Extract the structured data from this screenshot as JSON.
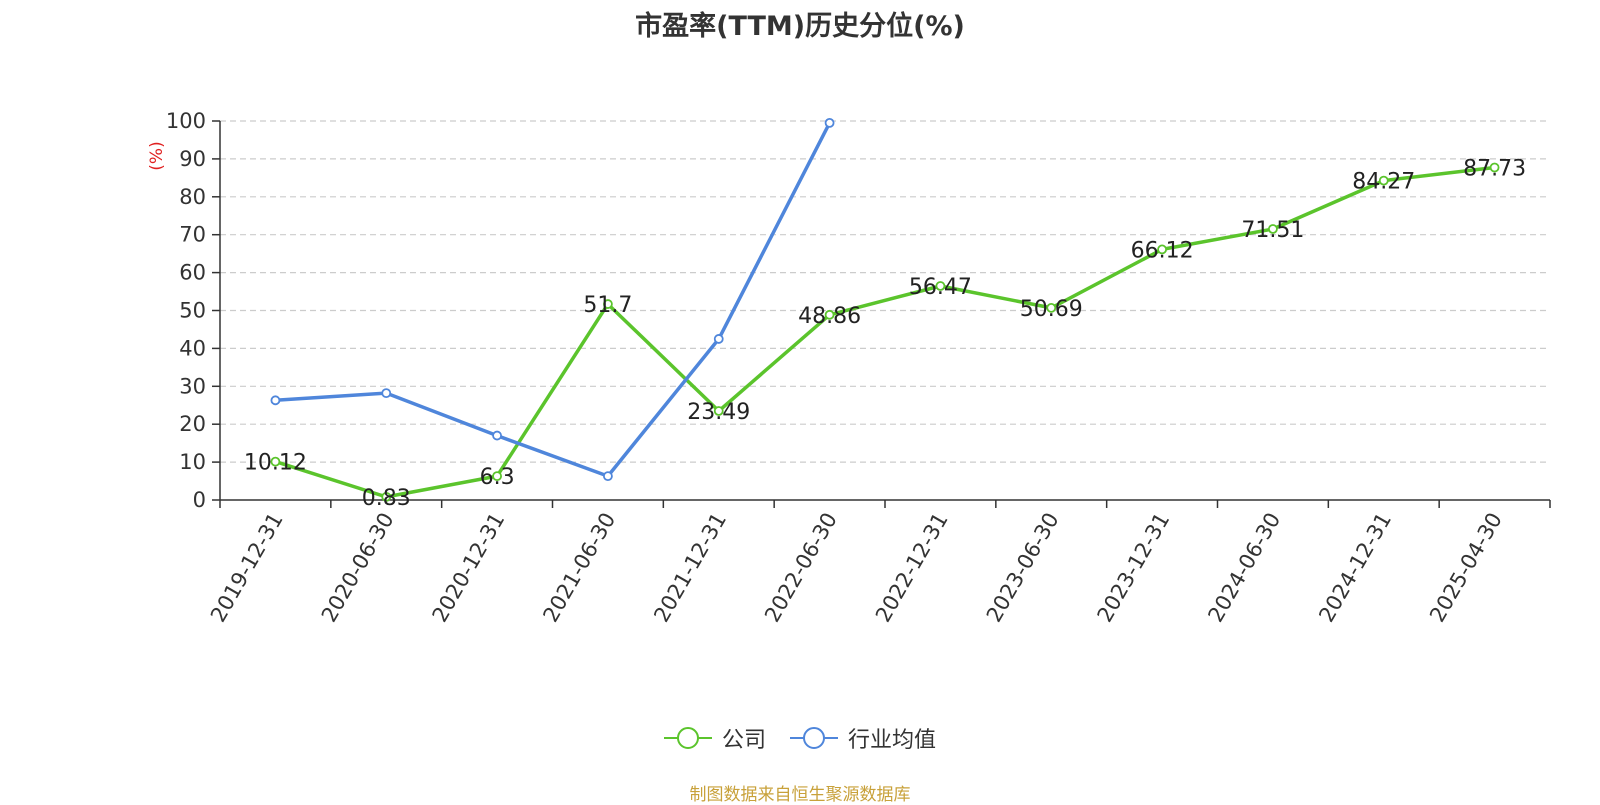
{
  "title": "市盈率(TTM)历史分位(%)",
  "source": "制图数据来自恒生聚源数据库",
  "legend": [
    {
      "name": "公司",
      "color": "#5bc42c"
    },
    {
      "name": "行业均值",
      "color": "#4f86db"
    }
  ],
  "chart_data": {
    "type": "line",
    "title": "市盈率(TTM)历史分位(%)",
    "ylabel": "(%)",
    "xlabel": "",
    "ylim": [
      0,
      100
    ],
    "y_ticks": [
      0,
      10,
      20,
      30,
      40,
      50,
      60,
      70,
      80,
      90,
      100
    ],
    "grid": true,
    "legend_position": "bottom",
    "categories": [
      "2019-12-31",
      "2020-06-30",
      "2020-12-31",
      "2021-06-30",
      "2021-12-31",
      "2022-06-30",
      "2022-12-31",
      "2023-06-30",
      "2023-12-31",
      "2024-06-30",
      "2024-12-31",
      "2025-04-30"
    ],
    "series": [
      {
        "name": "公司",
        "color": "#5bc42c",
        "show_labels": true,
        "values": [
          10.12,
          0.83,
          6.3,
          51.7,
          23.49,
          48.86,
          56.47,
          50.69,
          66.12,
          71.51,
          84.27,
          87.73
        ]
      },
      {
        "name": "行业均值",
        "color": "#4f86db",
        "show_labels": false,
        "values": [
          26.3,
          28.2,
          17.0,
          6.3,
          42.5,
          99.5,
          null,
          null,
          null,
          null,
          null,
          null
        ]
      }
    ]
  }
}
